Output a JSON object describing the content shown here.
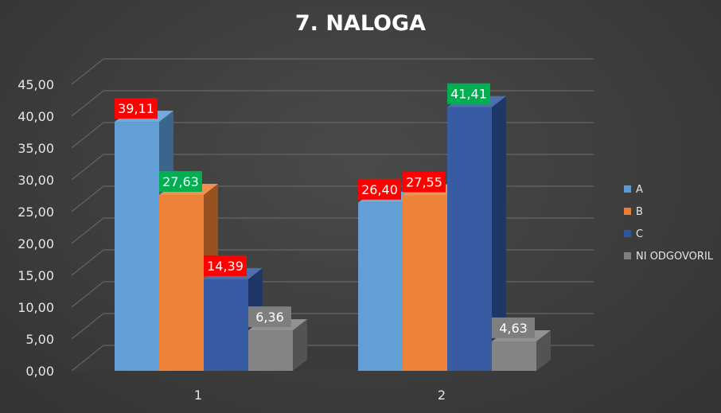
{
  "chart_data": {
    "type": "bar",
    "title": "7. NALOGA",
    "categories": [
      "1",
      "2"
    ],
    "series": [
      {
        "name": "A",
        "values": [
          39.11,
          26.4
        ],
        "labels": [
          "39,11",
          "26,40"
        ],
        "color": "#5b9bd5",
        "label_colors": [
          "#ff0000",
          "#ff0000"
        ]
      },
      {
        "name": "B",
        "values": [
          27.63,
          27.55
        ],
        "labels": [
          "27,63",
          "27,55"
        ],
        "color": "#ed7d31",
        "label_colors": [
          "#00b050",
          "#ff0000"
        ]
      },
      {
        "name": "C",
        "values": [
          14.39,
          41.41
        ],
        "labels": [
          "14,39",
          "41,41"
        ],
        "color": "#2e55a0",
        "label_colors": [
          "#ff0000",
          "#00b050"
        ]
      },
      {
        "name": "NI ODGOVORIL",
        "values": [
          6.36,
          4.63
        ],
        "labels": [
          "6,36",
          "4,63"
        ],
        "color": "#7f7f7f",
        "label_colors": [
          "#7f7f7f",
          "#7f7f7f"
        ]
      }
    ],
    "yticks": [
      "0,00",
      "5,00",
      "10,00",
      "15,00",
      "20,00",
      "25,00",
      "30,00",
      "35,00",
      "40,00",
      "45,00"
    ],
    "ylim": [
      0,
      45
    ],
    "grid": true,
    "legend": "right",
    "xlabel": "",
    "ylabel": ""
  }
}
